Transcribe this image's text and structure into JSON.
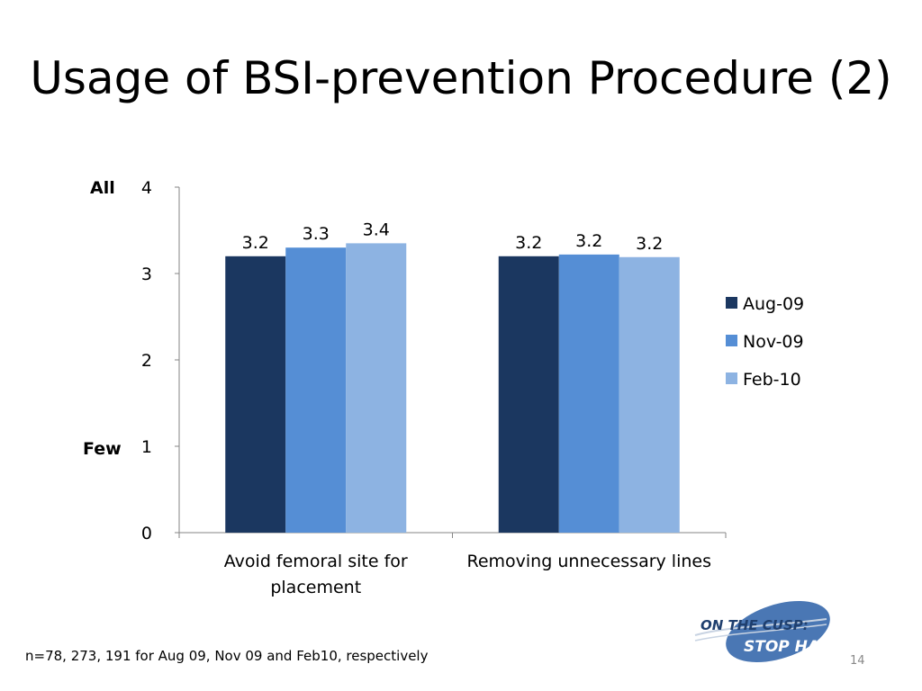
{
  "slide": {
    "title": "Usage of BSI-prevention Procedure (2)",
    "label_top": "All",
    "label_bottom": "Few",
    "footnote": "n=78, 273, 191 for Aug 09, Nov 09 and Feb10, respectively",
    "page_number": "14"
  },
  "logo": {
    "line1": "ON THE CUSP:",
    "line2": "STOP HAI",
    "colors": {
      "text": "#1f3f6e",
      "swoosh": "#2e5c9a"
    }
  },
  "chart_data": {
    "type": "bar",
    "categories": [
      [
        "Avoid femoral site for",
        "placement"
      ],
      [
        "Removing unnecessary lines"
      ]
    ],
    "series": [
      {
        "name": "Aug-09",
        "values": [
          3.2,
          3.2
        ],
        "labels": [
          "3.2",
          "3.2"
        ],
        "color": "#1b3760"
      },
      {
        "name": "Nov-09",
        "values": [
          3.3,
          3.22
        ],
        "labels": [
          "3.3",
          "3.2"
        ],
        "color": "#558ed5"
      },
      {
        "name": "Feb-10",
        "values": [
          3.35,
          3.19
        ],
        "labels": [
          "3.4",
          "3.2"
        ],
        "color": "#8db3e2"
      }
    ],
    "ylim": [
      0,
      4
    ],
    "yticks": [
      "0",
      "1",
      "2",
      "3",
      "4"
    ],
    "grid": false,
    "legend_position": "right"
  }
}
